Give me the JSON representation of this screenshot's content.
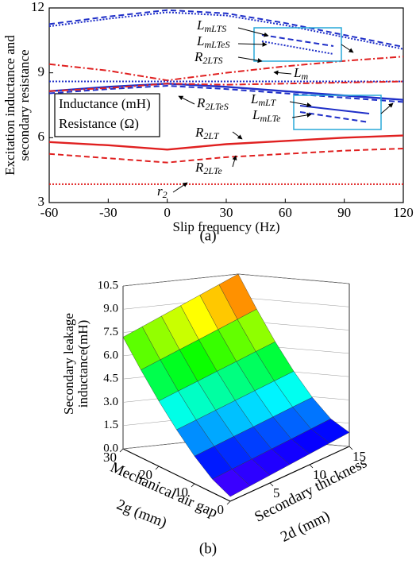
{
  "chart_data": [
    {
      "type": "line",
      "ylabel": [
        "Excitation inductance and",
        "secondary resistance"
      ],
      "xlabel": "Slip frequency (Hz)",
      "panel": "(a)",
      "annotations": [
        "Inductance (mH)",
        "Resistance (Ω)"
      ],
      "x": [
        -60,
        -30,
        0,
        30,
        60,
        90,
        120
      ],
      "xlim": [
        -60,
        120
      ],
      "xticks": [
        -60,
        -30,
        0,
        30,
        60,
        90,
        120
      ],
      "ylim": [
        3,
        12
      ],
      "yticks": [
        3,
        6,
        9,
        12
      ],
      "series": [
        {
          "name": "LmLTS",
          "color": "#1f2fc8",
          "style": "dashed",
          "values": [
            11.25,
            11.6,
            11.9,
            11.75,
            11.3,
            10.75,
            10.2
          ]
        },
        {
          "name": "LmLTeS",
          "color": "#1f2fc8",
          "style": "dotted",
          "values": [
            11.15,
            11.5,
            11.8,
            11.65,
            11.2,
            10.65,
            10.1
          ]
        },
        {
          "name": "R2LTS",
          "color": "#e02020",
          "style": "dashdot",
          "values": [
            9.4,
            9.1,
            8.65,
            9.0,
            9.3,
            9.55,
            9.75
          ]
        },
        {
          "name": "Lm",
          "color": "#1f2fc8",
          "style": "dotted",
          "values": [
            8.6,
            8.6,
            8.6,
            8.6,
            8.6,
            8.6,
            8.6
          ]
        },
        {
          "name": "LmLT",
          "color": "#1f2fc8",
          "style": "solid",
          "values": [
            8.15,
            8.35,
            8.5,
            8.35,
            8.15,
            7.95,
            7.75
          ]
        },
        {
          "name": "LmLTe",
          "color": "#1f2fc8",
          "style": "dashed",
          "values": [
            8.05,
            8.25,
            8.4,
            8.25,
            8.05,
            7.85,
            7.65
          ]
        },
        {
          "name": "R2LTeS",
          "color": "#e02020",
          "style": "dashdot",
          "values": [
            8.15,
            8.3,
            8.5,
            8.45,
            8.5,
            8.55,
            8.6
          ]
        },
        {
          "name": "R2LT",
          "color": "#e02020",
          "style": "solid",
          "values": [
            5.8,
            5.65,
            5.45,
            5.7,
            5.85,
            6.0,
            6.1
          ]
        },
        {
          "name": "R2LTe",
          "color": "#e02020",
          "style": "dashed",
          "values": [
            5.25,
            5.05,
            4.85,
            5.1,
            5.25,
            5.4,
            5.5
          ]
        },
        {
          "name": "r2",
          "color": "#e02020",
          "style": "dotted",
          "values": [
            3.85,
            3.85,
            3.85,
            3.85,
            3.85,
            3.85,
            3.85
          ]
        }
      ]
    },
    {
      "type": "surface",
      "panel": "(b)",
      "zlabel": [
        "Secondary leakage",
        "inductance(mH)"
      ],
      "xlabel": [
        "Mechanical air gap",
        "2g (mm)"
      ],
      "ylabel": [
        "Secondary thickness",
        "2d (mm)"
      ],
      "colormap": "rainbow",
      "x": [
        0,
        5,
        10,
        15,
        20,
        25,
        30
      ],
      "y": [
        0,
        2.5,
        5,
        7.5,
        10,
        12.5,
        15
      ],
      "xlim": [
        0,
        30
      ],
      "xticks": [
        0,
        10,
        20,
        30
      ],
      "ylim": [
        0,
        15
      ],
      "yticks": [
        5,
        10,
        15
      ],
      "zlim": [
        0,
        10.5
      ],
      "zticks": [
        {
          "value": 0,
          "label": "0.0"
        },
        1.5,
        {
          "value": 3,
          "label": "3.0"
        },
        4.5,
        {
          "value": 6,
          "label": "6.0"
        },
        7.5,
        {
          "value": 9,
          "label": "9.0"
        },
        10.5
      ],
      "z": [
        [
          0.3,
          0.4,
          0.5,
          0.6,
          0.7,
          0.8,
          0.9
        ],
        [
          0.86,
          1.0,
          1.13,
          1.27,
          1.4,
          1.54,
          1.68
        ],
        [
          1.78,
          1.98,
          2.18,
          2.37,
          2.57,
          2.77,
          2.96
        ],
        [
          2.92,
          3.19,
          3.46,
          3.73,
          4.0,
          4.27,
          4.54
        ],
        [
          4.21,
          4.57,
          4.92,
          5.28,
          5.63,
          5.99,
          6.34
        ],
        [
          5.65,
          6.1,
          6.55,
          6.99,
          7.44,
          7.89,
          8.34
        ],
        [
          7.2,
          7.75,
          8.3,
          8.85,
          9.4,
          9.95,
          10.5
        ]
      ]
    }
  ]
}
